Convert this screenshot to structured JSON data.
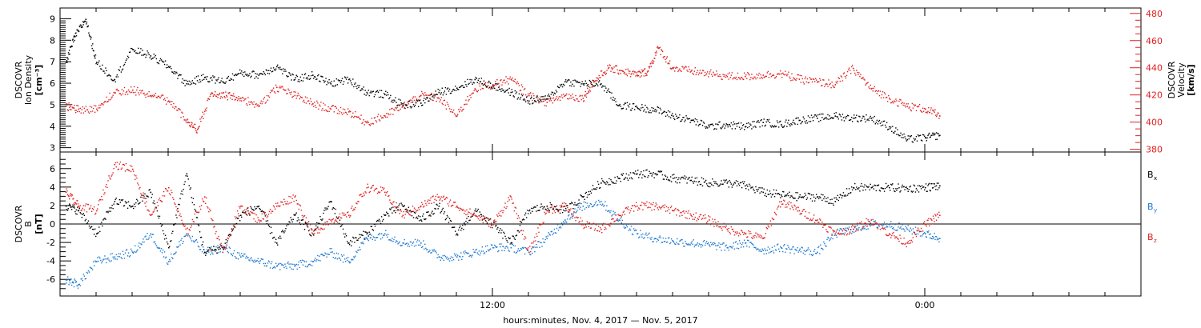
{
  "chart_data": [
    {
      "type": "scatter",
      "panel": "top",
      "ylabel_left": [
        "DSCOVR",
        "Ion Density",
        "[cm⁻³]"
      ],
      "ylabel_right": [
        "DSCOVR",
        "Velocity",
        "[km/s]"
      ],
      "ylim_left": [
        2.8,
        9.5
      ],
      "ylim_right": [
        378,
        484
      ],
      "yticks_left": [
        3,
        4,
        5,
        6,
        7,
        8,
        9
      ],
      "yticks_right": [
        380,
        400,
        420,
        440,
        460,
        480
      ],
      "series": [
        {
          "axis": "left",
          "color": "#000000",
          "x": [
            0.15,
            0.4,
            0.7,
            1.0,
            1.5,
            2.0,
            2.5,
            3.0,
            3.5,
            4.0,
            4.5,
            5.0,
            5.5,
            6.0,
            6.5,
            7.0,
            7.5,
            8.0,
            8.5,
            9.0,
            9.5,
            10.0,
            10.5,
            11.0,
            11.5,
            12.0,
            12.5,
            13.0,
            13.5,
            14.0,
            14.5,
            15.0,
            15.5,
            16.0,
            16.5,
            17.0,
            17.5,
            18.0,
            18.5,
            19.0,
            19.5,
            20.0,
            20.5,
            21.0,
            21.5,
            22.0,
            22.5,
            23.0,
            23.5,
            24.0,
            24.4
          ],
          "y": [
            7.0,
            8.2,
            9.0,
            7.0,
            6.2,
            7.6,
            7.3,
            6.8,
            6.0,
            6.3,
            6.1,
            6.5,
            6.4,
            6.8,
            6.2,
            6.4,
            6.0,
            6.2,
            5.6,
            5.5,
            5.0,
            5.1,
            5.6,
            5.8,
            6.2,
            5.9,
            5.6,
            5.2,
            5.3,
            6.1,
            6.0,
            6.0,
            5.0,
            4.9,
            4.8,
            4.5,
            4.3,
            4.0,
            4.1,
            4.0,
            4.2,
            4.1,
            4.3,
            4.4,
            4.5,
            4.4,
            4.4,
            4.0,
            3.4,
            3.5,
            3.6
          ]
        },
        {
          "axis": "right",
          "color": "#e02020",
          "x": [
            0.15,
            0.5,
            1.0,
            1.5,
            2.0,
            2.5,
            3.0,
            3.5,
            3.8,
            4.2,
            4.6,
            5.0,
            5.5,
            6.0,
            6.5,
            7.0,
            7.5,
            8.0,
            8.5,
            9.0,
            9.5,
            10.0,
            10.5,
            11.0,
            11.5,
            12.0,
            12.5,
            13.0,
            13.5,
            14.0,
            14.5,
            14.8,
            15.2,
            15.6,
            16.0,
            16.3,
            16.6,
            17.0,
            17.5,
            18.0,
            18.5,
            19.0,
            19.5,
            20.0,
            20.5,
            21.0,
            21.5,
            22.0,
            22.5,
            23.0,
            23.5,
            24.0,
            24.4
          ],
          "y": [
            412,
            410,
            410,
            422,
            424,
            420,
            416,
            402,
            395,
            422,
            420,
            418,
            412,
            426,
            420,
            414,
            410,
            408,
            400,
            405,
            412,
            420,
            418,
            405,
            425,
            428,
            432,
            420,
            415,
            420,
            418,
            430,
            440,
            438,
            435,
            438,
            455,
            440,
            438,
            436,
            434,
            434,
            435,
            436,
            432,
            430,
            428,
            440,
            425,
            418,
            412,
            410,
            405
          ]
        }
      ]
    },
    {
      "type": "scatter",
      "panel": "bottom",
      "ylabel_left": [
        "DSCOVR",
        "B",
        "[nT]"
      ],
      "ylim": [
        -7.8,
        7.8
      ],
      "yticks": [
        -6,
        -4,
        -2,
        0,
        2,
        4,
        6
      ],
      "zero_line": true,
      "legend": [
        "B",
        "B",
        "B"
      ],
      "legend_sub": [
        "x",
        "y",
        "z"
      ],
      "legend_colors": [
        "#000000",
        "#1e78d0",
        "#e02020"
      ],
      "series": [
        {
          "color": "#000000",
          "x": [
            0.15,
            0.5,
            1.0,
            1.5,
            2.0,
            2.5,
            3.0,
            3.5,
            4.0,
            4.5,
            5.0,
            5.5,
            6.0,
            6.5,
            7.0,
            7.5,
            8.0,
            8.5,
            9.0,
            9.5,
            10.0,
            10.5,
            11.0,
            11.5,
            12.0,
            12.5,
            13.0,
            13.5,
            14.0,
            14.5,
            15.0,
            15.5,
            16.0,
            16.5,
            17.0,
            17.5,
            18.0,
            18.5,
            19.0,
            19.5,
            20.0,
            20.5,
            21.0,
            21.5,
            22.0,
            22.5,
            23.0,
            23.5,
            24.0,
            24.4
          ],
          "y": [
            2.0,
            1.5,
            -1.0,
            2.5,
            2.0,
            3.5,
            -2.5,
            5.5,
            -3.0,
            -2.5,
            1.0,
            2.0,
            -2.0,
            1.0,
            -1.0,
            2.5,
            -2.0,
            -1.0,
            1.0,
            2.0,
            0.5,
            2.0,
            -1.0,
            1.5,
            0.0,
            -2.0,
            1.5,
            2.0,
            1.5,
            3.0,
            4.5,
            5.0,
            5.5,
            5.5,
            5.0,
            4.8,
            4.5,
            4.5,
            4.2,
            3.5,
            3.2,
            3.0,
            3.0,
            2.5,
            4.0,
            4.0,
            4.0,
            3.9,
            4.0,
            4.2
          ]
        },
        {
          "color": "#1e78d0",
          "x": [
            0.15,
            0.5,
            1.0,
            1.5,
            2.0,
            2.5,
            3.0,
            3.5,
            4.0,
            4.5,
            5.0,
            5.5,
            6.0,
            6.5,
            7.0,
            7.5,
            8.0,
            8.5,
            9.0,
            9.5,
            10.0,
            10.5,
            11.0,
            11.5,
            12.0,
            12.5,
            13.0,
            13.5,
            14.0,
            14.5,
            15.0,
            15.5,
            16.0,
            16.5,
            17.0,
            17.5,
            18.0,
            18.5,
            19.0,
            19.5,
            20.0,
            20.5,
            21.0,
            21.5,
            22.0,
            22.5,
            23.0,
            23.5,
            24.0,
            24.4
          ],
          "y": [
            -6.0,
            -6.5,
            -4.0,
            -3.5,
            -3.0,
            -1.0,
            -4.0,
            -1.0,
            -3.0,
            -2.5,
            -3.5,
            -4.0,
            -4.5,
            -4.5,
            -4.0,
            -3.0,
            -4.0,
            -1.5,
            -1.0,
            -2.0,
            -2.0,
            -3.5,
            -3.5,
            -3.0,
            -2.5,
            -2.5,
            -3.0,
            -1.5,
            0.5,
            2.0,
            2.5,
            0.5,
            -1.0,
            -1.5,
            -1.8,
            -2.0,
            -2.2,
            -2.5,
            -2.0,
            -2.8,
            -2.5,
            -2.8,
            -3.0,
            -1.0,
            -0.5,
            0.0,
            0.0,
            -0.5,
            -1.0,
            -1.5
          ]
        },
        {
          "color": "#e02020",
          "x": [
            0.15,
            0.5,
            1.0,
            1.5,
            2.0,
            2.5,
            3.0,
            3.5,
            4.0,
            4.5,
            5.0,
            5.5,
            6.0,
            6.5,
            7.0,
            7.5,
            8.0,
            8.5,
            9.0,
            9.5,
            10.0,
            10.5,
            11.0,
            11.5,
            12.0,
            12.5,
            13.0,
            13.5,
            14.0,
            14.5,
            15.0,
            15.5,
            16.0,
            16.5,
            17.0,
            17.5,
            18.0,
            18.5,
            19.0,
            19.5,
            20.0,
            20.5,
            21.0,
            21.5,
            22.0,
            22.5,
            23.0,
            23.5,
            24.0,
            24.4
          ],
          "y": [
            3.5,
            2.0,
            1.5,
            6.5,
            6.0,
            1.0,
            4.0,
            -1.0,
            3.0,
            -3.0,
            2.0,
            0.5,
            2.0,
            3.0,
            -1.0,
            0.5,
            1.0,
            4.0,
            3.5,
            1.0,
            2.0,
            3.0,
            2.0,
            1.0,
            0.0,
            3.0,
            -3.0,
            1.5,
            2.0,
            0.0,
            -0.5,
            1.0,
            2.0,
            2.0,
            1.5,
            1.0,
            0.5,
            -0.5,
            -1.0,
            -1.5,
            2.5,
            1.5,
            0.5,
            -1.0,
            -0.5,
            0.5,
            -1.0,
            -2.0,
            0.0,
            1.0
          ]
        }
      ]
    }
  ],
  "x_axis": {
    "xlim": [
      0,
      30
    ],
    "major_ticks": [
      12,
      24
    ],
    "tick_labels": [
      "12:00",
      "0:00"
    ],
    "minor_step": 1,
    "title": "hours:minutes, Nov.  4, 2017 — Nov.  5, 2017"
  }
}
